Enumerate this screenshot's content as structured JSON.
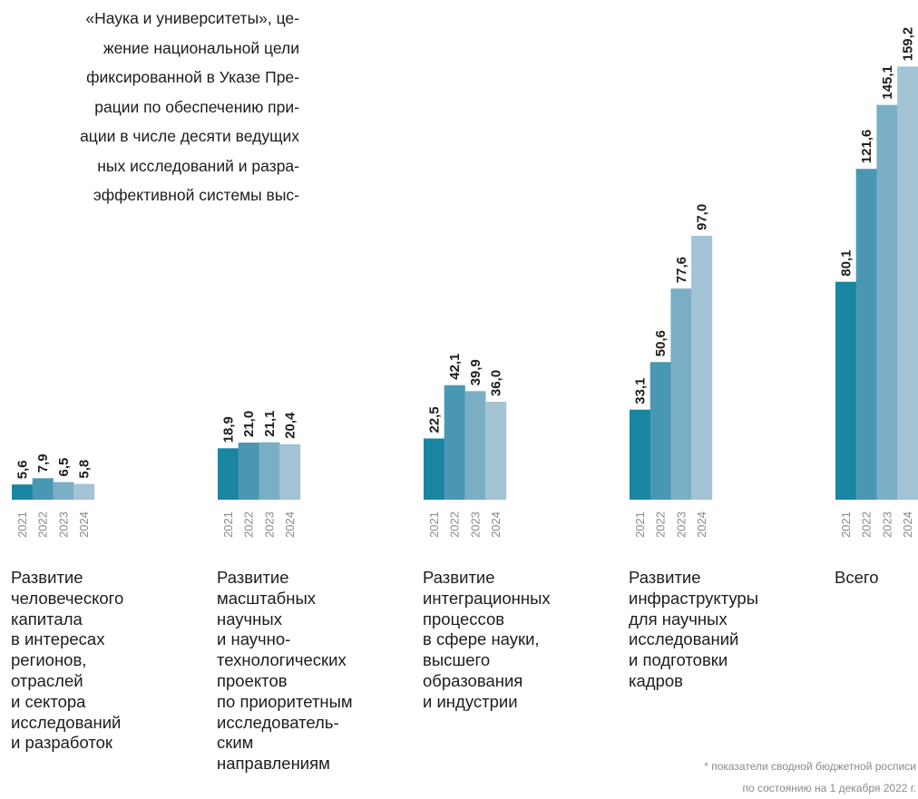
{
  "intro": {
    "lines": [
      "«Наука и университеты», це-",
      "жение национальной цели",
      "фиксированной в Указе Пре-",
      "рации по обеспечению при-",
      "ации в числе десяти ведущих",
      "ных исследований и разра-",
      "эффективной системы выс-"
    ]
  },
  "chart_data": {
    "type": "bar",
    "title": "",
    "xlabel": "",
    "ylabel": "",
    "ylim": [
      0,
      170
    ],
    "grid": false,
    "legend": "none",
    "years": [
      "2021",
      "2022",
      "2023",
      "2024"
    ],
    "colors": [
      "#1a85a0",
      "#4a97b4",
      "#7aaec4",
      "#a3c4d5"
    ],
    "groups": [
      {
        "name_lines": [
          "Развитие",
          "человеческого",
          "капитала",
          "в интересах",
          "регионов,",
          "отраслей",
          "и сектора",
          "исследований",
          "и разработок"
        ],
        "values": [
          5.6,
          7.9,
          6.5,
          5.8
        ],
        "labels": [
          "5,6",
          "7,9",
          "6,5",
          "5,8"
        ]
      },
      {
        "name_lines": [
          "Развитие",
          "масштабных",
          "научных",
          "и научно-",
          "технологических",
          "проектов",
          "по приоритетным",
          "исследователь-",
          "ским",
          "направлениям"
        ],
        "values": [
          18.9,
          21.0,
          21.1,
          20.4
        ],
        "labels": [
          "18,9",
          "21,0",
          "21,1",
          "20,4"
        ]
      },
      {
        "name_lines": [
          "Развитие",
          "интеграционных",
          "процессов",
          "в сфере науки,",
          "высшего",
          "образования",
          "и индустрии"
        ],
        "values": [
          22.5,
          42.1,
          39.9,
          36.0
        ],
        "labels": [
          "22,5",
          "42,1",
          "39,9",
          "36,0"
        ]
      },
      {
        "name_lines": [
          "Развитие",
          "инфраструктуры",
          "для научных",
          "исследований",
          "и подготовки",
          "кадров"
        ],
        "values": [
          33.1,
          50.6,
          77.6,
          97.0
        ],
        "labels": [
          "33,1",
          "50,6",
          "77,6",
          "97,0"
        ]
      },
      {
        "name_lines": [
          "Всего"
        ],
        "values": [
          80.1,
          121.6,
          145.1,
          159.2
        ],
        "labels": [
          "80,1",
          "121,6",
          "145,1",
          "159,2"
        ]
      }
    ]
  },
  "footnote": {
    "lines": [
      "* показатели сводной бюджетной росписи",
      "по состоянию на 1 декабря 2022 г."
    ]
  }
}
